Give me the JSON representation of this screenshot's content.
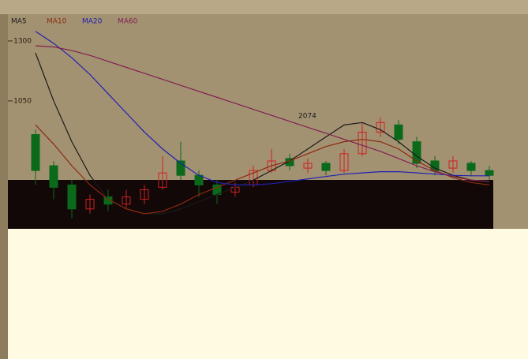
{
  "chart_data": {
    "type": "candlestick",
    "annotation": "2074",
    "ylim": [
      517,
      1405
    ],
    "yticks": [
      1300,
      1050
    ],
    "grid": false,
    "up_color": "#d02020",
    "down_color": "#0a6a1a",
    "candles": {
      "open": [
        910,
        780,
        700,
        600,
        650,
        620,
        640,
        690,
        800,
        740,
        700,
        670,
        700,
        760,
        810,
        770,
        790,
        760,
        830,
        920,
        950,
        880,
        800,
        770,
        790,
        760
      ],
      "close": [
        760,
        690,
        600,
        640,
        620,
        650,
        680,
        750,
        740,
        700,
        660,
        690,
        760,
        800,
        780,
        790,
        760,
        830,
        920,
        960,
        890,
        790,
        760,
        800,
        760,
        740
      ],
      "high": [
        930,
        800,
        720,
        660,
        680,
        680,
        700,
        820,
        880,
        760,
        720,
        710,
        780,
        850,
        830,
        810,
        800,
        850,
        960,
        980,
        970,
        900,
        820,
        820,
        800,
        780
      ],
      "low": [
        700,
        640,
        560,
        580,
        590,
        600,
        620,
        680,
        720,
        650,
        620,
        650,
        690,
        750,
        760,
        750,
        740,
        750,
        820,
        900,
        870,
        770,
        740,
        750,
        740,
        720
      ]
    },
    "series": [
      {
        "name": "MA5",
        "color": "#1a1a1a",
        "values": [
          1250,
          1050,
          880,
          740,
          640,
          600,
          580,
          580,
          600,
          630,
          660,
          690,
          720,
          760,
          800,
          850,
          900,
          950,
          960,
          930,
          880,
          820,
          770,
          740,
          720,
          710
        ]
      },
      {
        "name": "MA10",
        "color": "#8a2a10",
        "values": [
          950,
          870,
          780,
          700,
          640,
          600,
          580,
          590,
          620,
          660,
          690,
          720,
          750,
          780,
          800,
          830,
          860,
          880,
          890,
          880,
          850,
          800,
          760,
          730,
          710,
          700
        ]
      },
      {
        "name": "MA20",
        "color": "#2020b0",
        "values": [
          1340,
          1290,
          1230,
          1160,
          1080,
          1000,
          920,
          850,
          790,
          740,
          710,
          700,
          700,
          705,
          715,
          725,
          735,
          745,
          750,
          755,
          755,
          750,
          745,
          740,
          738,
          738
        ]
      },
      {
        "name": "MA60",
        "color": "#802050",
        "values": [
          1280,
          1275,
          1260,
          1240,
          1215,
          1190,
          1165,
          1140,
          1115,
          1090,
          1065,
          1040,
          1015,
          990,
          965,
          940,
          915,
          890,
          865,
          840,
          810,
          780,
          755,
          735,
          720,
          715
        ]
      }
    ]
  }
}
